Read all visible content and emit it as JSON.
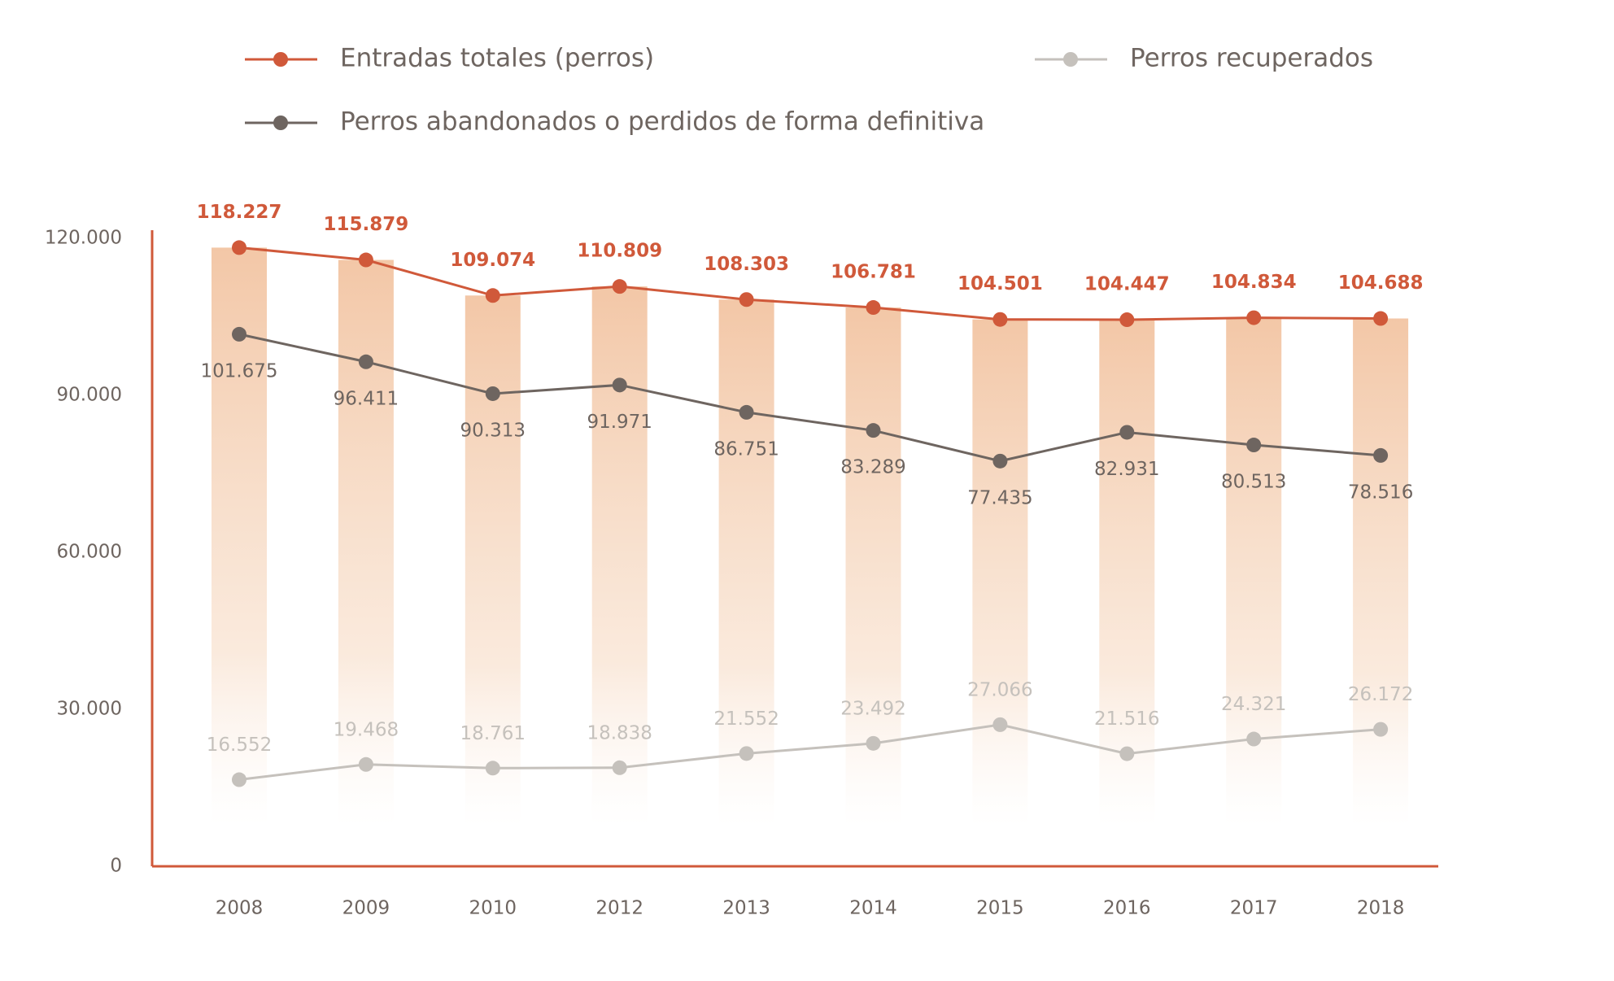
{
  "chart_data": {
    "type": "line",
    "categories": [
      "2008",
      "2009",
      "2010",
      "2012",
      "2013",
      "2014",
      "2015",
      "2016",
      "2017",
      "2018"
    ],
    "series": [
      {
        "name": "Entradas totales (perros)",
        "color": "#d0593a",
        "values": [
          118227,
          115879,
          109074,
          110809,
          108303,
          106781,
          104501,
          104447,
          104834,
          104688
        ],
        "value_labels": [
          "118.227",
          "115.879",
          "109.074",
          "110.809",
          "108.303",
          "106.781",
          "104.501",
          "104.447",
          "104.834",
          "104.688"
        ]
      },
      {
        "name": "Perros abandonados o perdidos de forma definitiva",
        "color": "#6e6560",
        "values": [
          101675,
          96411,
          90313,
          91971,
          86751,
          83289,
          77435,
          82931,
          80513,
          78516
        ],
        "value_labels": [
          "101.675",
          "96.411",
          "90.313",
          "91.971",
          "86.751",
          "83.289",
          "77.435",
          "82.931",
          "80.513",
          "78.516"
        ]
      },
      {
        "name": "Perros recuperados",
        "color": "#c5c1bc",
        "values": [
          16552,
          19468,
          18761,
          18838,
          21552,
          23492,
          27066,
          21516,
          24321,
          26172
        ],
        "value_labels": [
          "16.552",
          "19.468",
          "18.761",
          "18.838",
          "21.552",
          "23.492",
          "27.066",
          "21.516",
          "24.321",
          "26.172"
        ]
      }
    ],
    "ylim": [
      0,
      120000
    ],
    "yticks": [
      0,
      {
        "value": 30000,
        "label": "30.000"
      },
      {
        "value": 60000,
        "label": "60.000"
      },
      {
        "value": 90000,
        "label": "90.000"
      },
      {
        "value": 120000,
        "label": "120.000"
      }
    ],
    "axis_color": "#d0593a"
  }
}
